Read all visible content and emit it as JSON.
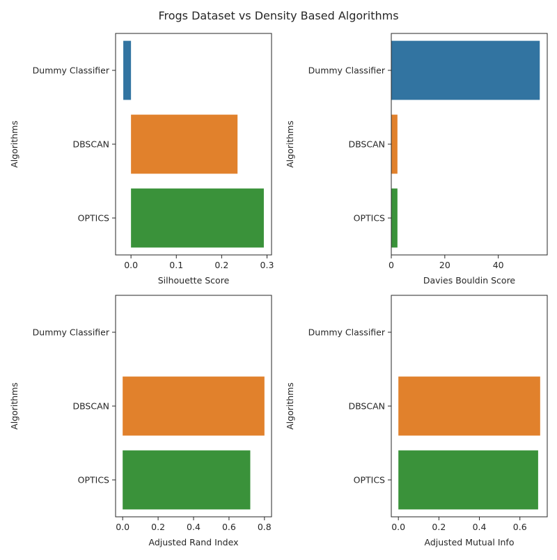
{
  "figure_title": "Frogs Dataset vs Density Based Algorithms",
  "colors": {
    "Dummy Classifier": "#3274a1",
    "DBSCAN": "#e1812c",
    "OPTICS": "#3a923a"
  },
  "chart_data": [
    {
      "type": "bar",
      "orientation": "horizontal",
      "categories": [
        "Dummy Classifier",
        "DBSCAN",
        "OPTICS"
      ],
      "values": [
        -0.017,
        0.235,
        0.293
      ],
      "xlabel": "Silhouette Score",
      "ylabel": "Algorithms",
      "xlim": [
        -0.034,
        0.31
      ],
      "xticks": [
        0.0,
        0.1,
        0.2,
        0.3
      ],
      "xtick_labels": [
        "0.0",
        "0.1",
        "0.2",
        "0.3"
      ]
    },
    {
      "type": "bar",
      "orientation": "horizontal",
      "categories": [
        "Dummy Classifier",
        "DBSCAN",
        "OPTICS"
      ],
      "values": [
        55.5,
        2.3,
        2.3
      ],
      "xlabel": "Davies Bouldin Score",
      "ylabel": "Algorithms",
      "xlim": [
        0,
        58.3
      ],
      "xticks": [
        0,
        20,
        40
      ],
      "xtick_labels": [
        "0",
        "20",
        "40"
      ]
    },
    {
      "type": "bar",
      "orientation": "horizontal",
      "categories": [
        "Dummy Classifier",
        "DBSCAN",
        "OPTICS"
      ],
      "values": [
        0.0,
        0.8,
        0.72
      ],
      "xlabel": "Adjusted Rand Index",
      "ylabel": "Algorithms",
      "xlim": [
        -0.04,
        0.84
      ],
      "xticks": [
        0.0,
        0.2,
        0.4,
        0.6,
        0.8
      ],
      "xtick_labels": [
        "0.0",
        "0.2",
        "0.4",
        "0.6",
        "0.8"
      ]
    },
    {
      "type": "bar",
      "orientation": "horizontal",
      "categories": [
        "Dummy Classifier",
        "DBSCAN",
        "OPTICS"
      ],
      "values": [
        0.0,
        0.7,
        0.69
      ],
      "xlabel": "Adjusted Mutual Info",
      "ylabel": "Algorithms",
      "xlim": [
        -0.035,
        0.735
      ],
      "xticks": [
        0.0,
        0.2,
        0.4,
        0.6
      ],
      "xtick_labels": [
        "0.0",
        "0.2",
        "0.4",
        "0.6"
      ]
    }
  ]
}
